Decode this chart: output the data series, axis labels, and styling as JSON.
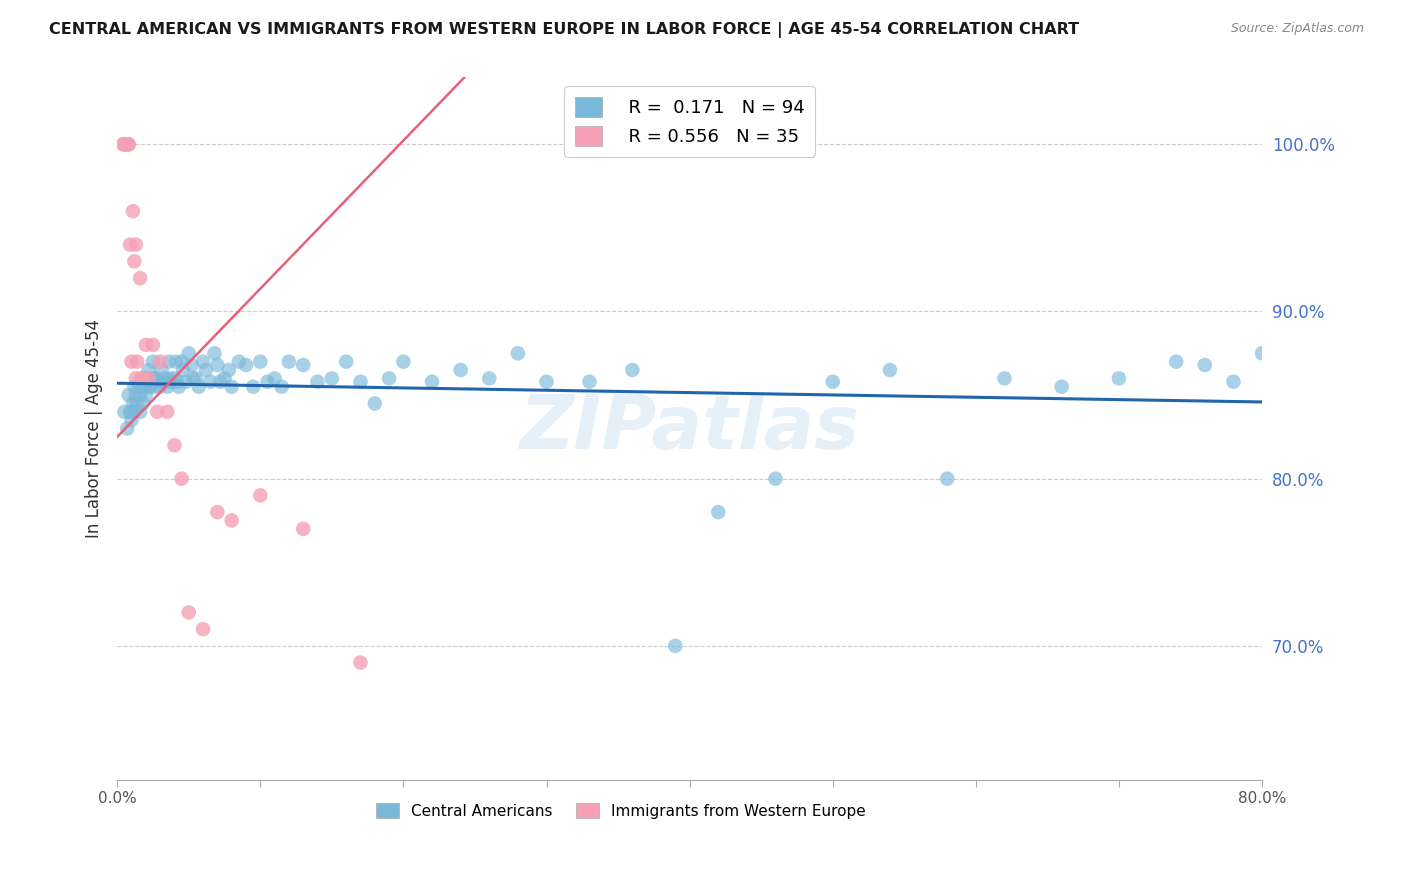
{
  "title": "CENTRAL AMERICAN VS IMMIGRANTS FROM WESTERN EUROPE IN LABOR FORCE | AGE 45-54 CORRELATION CHART",
  "source": "Source: ZipAtlas.com",
  "ylabel": "In Labor Force | Age 45-54",
  "x_min": 0.0,
  "x_max": 0.8,
  "y_min": 0.62,
  "y_max": 1.04,
  "y_ticks": [
    0.7,
    0.8,
    0.9,
    1.0
  ],
  "y_tick_labels": [
    "70.0%",
    "80.0%",
    "90.0%",
    "100.0%"
  ],
  "x_ticks": [
    0.0,
    0.1,
    0.2,
    0.3,
    0.4,
    0.5,
    0.6,
    0.7,
    0.8
  ],
  "x_tick_labels": [
    "0.0%",
    "",
    "",
    "",
    "",
    "",
    "",
    "",
    "80.0%"
  ],
  "blue_color": "#7ab8d9",
  "blue_line_color": "#2166ac",
  "pink_color": "#f4a0b5",
  "pink_line_color": "#e8607a",
  "r_blue": 0.171,
  "n_blue": 94,
  "r_pink": 0.556,
  "n_pink": 35,
  "legend_label_blue": "Central Americans",
  "legend_label_pink": "Immigrants from Western Europe",
  "watermark": "ZIPatlas",
  "blue_scatter_x": [
    0.005,
    0.007,
    0.008,
    0.009,
    0.01,
    0.01,
    0.011,
    0.012,
    0.012,
    0.013,
    0.014,
    0.015,
    0.016,
    0.016,
    0.017,
    0.018,
    0.018,
    0.019,
    0.02,
    0.02,
    0.021,
    0.022,
    0.022,
    0.023,
    0.025,
    0.025,
    0.026,
    0.027,
    0.028,
    0.03,
    0.031,
    0.032,
    0.033,
    0.035,
    0.036,
    0.037,
    0.038,
    0.04,
    0.041,
    0.042,
    0.043,
    0.045,
    0.046,
    0.048,
    0.05,
    0.052,
    0.053,
    0.055,
    0.057,
    0.06,
    0.062,
    0.065,
    0.068,
    0.07,
    0.072,
    0.075,
    0.078,
    0.08,
    0.085,
    0.09,
    0.095,
    0.1,
    0.105,
    0.11,
    0.115,
    0.12,
    0.13,
    0.14,
    0.15,
    0.16,
    0.17,
    0.18,
    0.19,
    0.2,
    0.22,
    0.24,
    0.26,
    0.28,
    0.3,
    0.33,
    0.36,
    0.39,
    0.42,
    0.46,
    0.5,
    0.54,
    0.58,
    0.62,
    0.66,
    0.7,
    0.74,
    0.76,
    0.78,
    0.8
  ],
  "blue_scatter_y": [
    0.84,
    0.83,
    0.85,
    0.84,
    0.84,
    0.835,
    0.845,
    0.84,
    0.855,
    0.85,
    0.845,
    0.855,
    0.85,
    0.84,
    0.855,
    0.845,
    0.86,
    0.855,
    0.86,
    0.85,
    0.86,
    0.855,
    0.865,
    0.855,
    0.86,
    0.87,
    0.855,
    0.86,
    0.858,
    0.855,
    0.865,
    0.858,
    0.86,
    0.855,
    0.87,
    0.86,
    0.858,
    0.86,
    0.87,
    0.858,
    0.855,
    0.87,
    0.865,
    0.858,
    0.875,
    0.868,
    0.86,
    0.86,
    0.855,
    0.87,
    0.865,
    0.858,
    0.875,
    0.868,
    0.858,
    0.86,
    0.865,
    0.855,
    0.87,
    0.868,
    0.855,
    0.87,
    0.858,
    0.86,
    0.855,
    0.87,
    0.868,
    0.858,
    0.86,
    0.87,
    0.858,
    0.845,
    0.86,
    0.87,
    0.858,
    0.865,
    0.86,
    0.875,
    0.858,
    0.858,
    0.865,
    0.7,
    0.78,
    0.8,
    0.858,
    0.865,
    0.8,
    0.86,
    0.855,
    0.86,
    0.87,
    0.868,
    0.858,
    0.875
  ],
  "pink_scatter_x": [
    0.004,
    0.005,
    0.005,
    0.006,
    0.006,
    0.007,
    0.007,
    0.007,
    0.008,
    0.008,
    0.009,
    0.01,
    0.011,
    0.012,
    0.013,
    0.013,
    0.014,
    0.016,
    0.017,
    0.018,
    0.02,
    0.022,
    0.025,
    0.028,
    0.03,
    0.035,
    0.04,
    0.045,
    0.05,
    0.06,
    0.07,
    0.08,
    0.1,
    0.13,
    0.17
  ],
  "pink_scatter_y": [
    1.0,
    1.0,
    1.0,
    1.0,
    1.0,
    1.0,
    1.0,
    1.0,
    1.0,
    1.0,
    0.94,
    0.87,
    0.96,
    0.93,
    0.94,
    0.86,
    0.87,
    0.92,
    0.86,
    0.86,
    0.88,
    0.86,
    0.88,
    0.84,
    0.87,
    0.84,
    0.82,
    0.8,
    0.72,
    0.71,
    0.78,
    0.775,
    0.79,
    0.77,
    0.69
  ],
  "pink_line_x_start": 0.0,
  "pink_line_x_end": 0.3
}
